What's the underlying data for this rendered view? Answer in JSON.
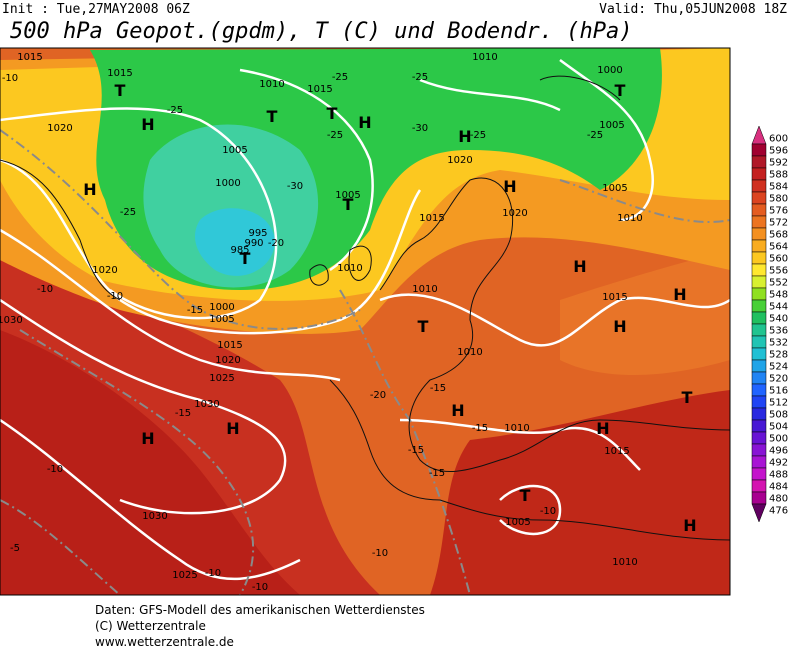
{
  "header": {
    "init": "Init : Tue,27MAY2008 06Z",
    "valid": "Valid: Thu,05JUN2008 18Z",
    "title": "500 hPa Geopot.(gpdm), T (C) und Bodendr. (hPa)"
  },
  "map_labels": [
    "1015",
    "1015",
    "T",
    "1010",
    "T",
    "1015",
    "-25",
    "1010",
    "-25",
    "1000",
    "T",
    "1005",
    "-25",
    "-10",
    "1020",
    "H",
    "-25",
    "H",
    "T",
    "-25",
    "-30",
    "H",
    "-25",
    "1005",
    "1000",
    "-30",
    "1005",
    "T",
    "-25",
    "T",
    "995",
    "990",
    "985",
    "1020",
    "H",
    "1020",
    "1015",
    "1005",
    "1010",
    "H",
    "1020",
    "-10",
    "-10",
    "1010",
    "1010",
    "H",
    "1015",
    "H",
    "H",
    "T",
    "1030",
    "1015",
    "1020",
    "1025",
    "1030",
    "-15",
    "H",
    "H",
    "1010",
    "-15",
    "H",
    "-20",
    "1010",
    "-15",
    "H",
    "T",
    "1015",
    "-15",
    "-15",
    "T",
    "1005",
    "-10",
    "H",
    "-10",
    "1030",
    "1025",
    "-10",
    "-5",
    "-10",
    "-10",
    "1010",
    "1000",
    "1005",
    "-15",
    "-20"
  ],
  "colorbar": {
    "ticks": [
      600,
      596,
      592,
      588,
      584,
      580,
      576,
      572,
      568,
      564,
      560,
      556,
      552,
      548,
      544,
      540,
      536,
      532,
      528,
      524,
      520,
      516,
      512,
      508,
      504,
      500,
      496,
      492,
      488,
      484,
      480,
      476
    ],
    "colors": [
      "#d8307f",
      "#a00030",
      "#b01828",
      "#c42020",
      "#d03020",
      "#dc4420",
      "#e45c20",
      "#ec7420",
      "#f49020",
      "#f8ac20",
      "#fcc820",
      "#ffe830",
      "#d8f030",
      "#90e020",
      "#48d038",
      "#20c060",
      "#20c490",
      "#20c4b4",
      "#20c0d4",
      "#20a4e8",
      "#2084f4",
      "#2064ff",
      "#2044f4",
      "#2828e0",
      "#4818d4",
      "#6814d4",
      "#8814d4",
      "#a814d4",
      "#c414cc",
      "#d414b0",
      "#a80090",
      "#600060"
    ]
  },
  "footer": {
    "line1": "Daten: GFS-Modell des amerikanischen Wetterdienstes",
    "line2": "(C) Wetterzentrale",
    "line3": "www.wetterzentrale.de"
  }
}
